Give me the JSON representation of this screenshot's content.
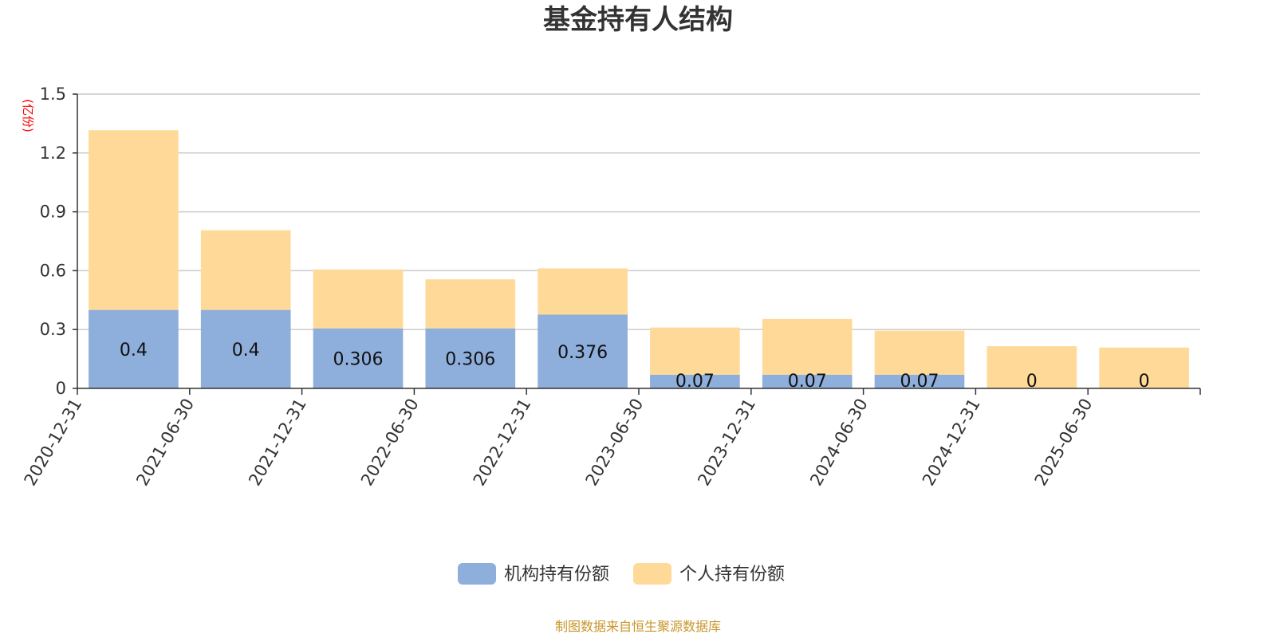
{
  "chart_data": {
    "type": "bar",
    "stacked": true,
    "title": "基金持有人结构",
    "unit_label": "(亿份)",
    "source": "制图数据来自恒生聚源数据库",
    "categories": [
      "2020-12-31",
      "2021-06-30",
      "2021-12-31",
      "2022-06-30",
      "2022-12-31",
      "2023-06-30",
      "2023-12-31",
      "2024-06-30",
      "2024-12-31",
      "2025-06-30"
    ],
    "ylim": [
      0,
      1.5
    ],
    "yticks": [
      "0",
      "0.3",
      "0.6",
      "0.9",
      "1.2",
      "1.5"
    ],
    "grid": true,
    "legend_position": "bottom-center",
    "series": [
      {
        "name": "机构持有份额",
        "color": "#8eaedb",
        "values": [
          0.4,
          0.4,
          0.306,
          0.306,
          0.376,
          0.07,
          0.07,
          0.07,
          0,
          0
        ],
        "labels": [
          "0.4",
          "0.4",
          "0.306",
          "0.306",
          "0.376",
          "0.07",
          "0.07",
          "0.07",
          "0",
          "0"
        ]
      },
      {
        "name": "个人持有份额",
        "color": "#ffd998",
        "values": [
          0.916,
          0.406,
          0.3,
          0.25,
          0.236,
          0.24,
          0.284,
          0.224,
          0.215,
          0.208
        ]
      }
    ]
  }
}
